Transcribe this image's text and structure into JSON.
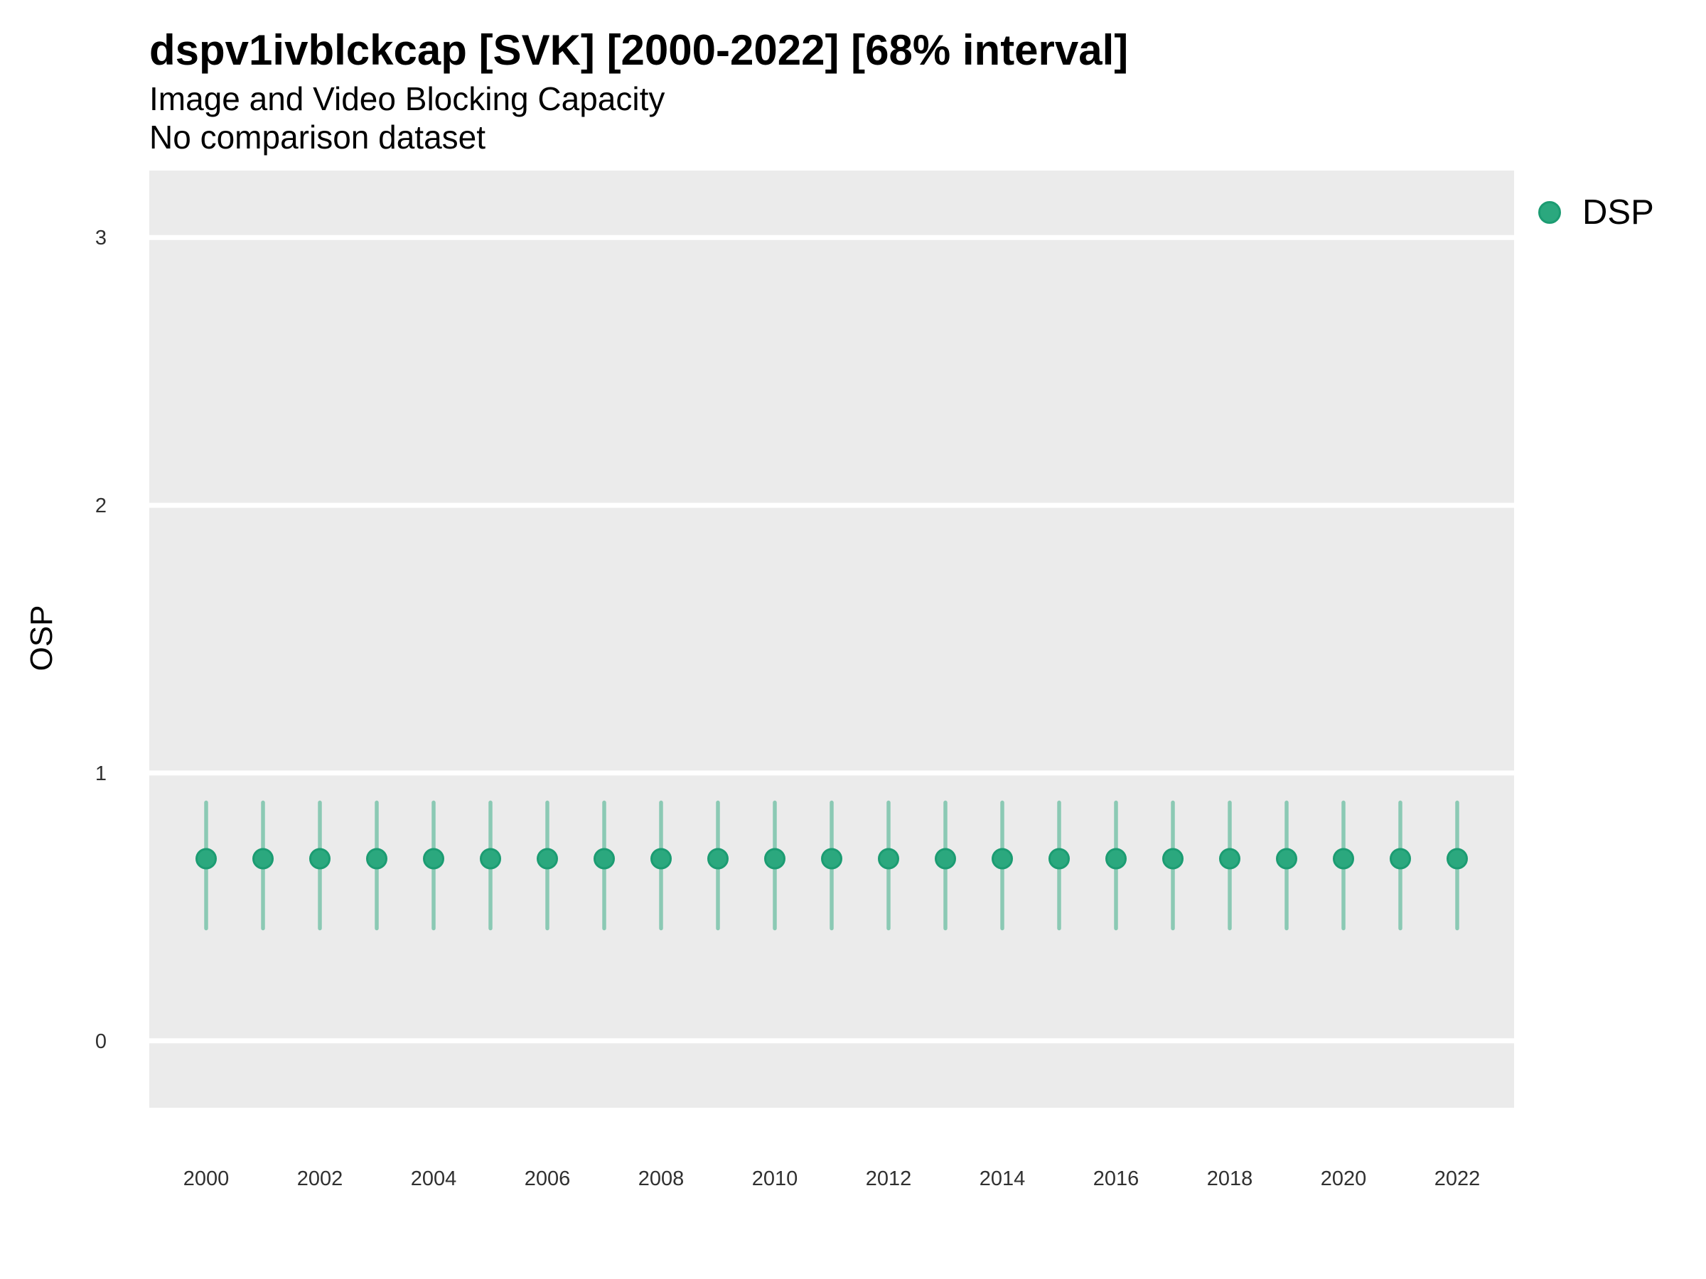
{
  "header": {
    "title": "dspv1ivblckcap [SVK] [2000-2022] [68% interval]",
    "subtitle": "Image and Video Blocking Capacity",
    "caption": "No comparison dataset"
  },
  "colors": {
    "panel_background": "#EBEBEB",
    "gridline": "#FFFFFF",
    "point_fill": "#2BA87E",
    "point_edge": "#1C9C72",
    "interval_line": "rgba(43,168,126,0.5)",
    "tick_text": "#303030",
    "title_text": "#000000"
  },
  "chart_data": {
    "type": "scatter",
    "title": "dspv1ivblckcap [SVK] [2000-2022] [68% interval]",
    "subtitle": "Image and Video Blocking Capacity",
    "caption": "No comparison dataset",
    "xlabel": "",
    "ylabel": "OSP",
    "interval_label": "68% interval",
    "grid": "horizontal-major-white-on-grey",
    "legend_position": "right-top",
    "xlim": [
      1999,
      2023
    ],
    "ylim": [
      -0.25,
      3.25
    ],
    "x_ticks": [
      2000,
      2002,
      2004,
      2006,
      2008,
      2010,
      2012,
      2014,
      2016,
      2018,
      2020,
      2022
    ],
    "y_ticks": [
      0,
      1,
      2,
      3
    ],
    "x": [
      2000,
      2001,
      2002,
      2003,
      2004,
      2005,
      2006,
      2007,
      2008,
      2009,
      2010,
      2011,
      2012,
      2013,
      2014,
      2015,
      2016,
      2017,
      2018,
      2019,
      2020,
      2021,
      2022
    ],
    "series": [
      {
        "name": "DSP",
        "color": "#2BA87E",
        "marker_edge_color": "#1C9C72",
        "interval_color": "rgba(43,168,126,0.5)",
        "values": [
          0.68,
          0.68,
          0.68,
          0.68,
          0.68,
          0.68,
          0.68,
          0.68,
          0.68,
          0.68,
          0.68,
          0.68,
          0.68,
          0.68,
          0.68,
          0.68,
          0.68,
          0.68,
          0.68,
          0.68,
          0.68,
          0.68,
          0.68
        ],
        "lower": [
          0.42,
          0.42,
          0.42,
          0.42,
          0.42,
          0.42,
          0.42,
          0.42,
          0.42,
          0.42,
          0.42,
          0.42,
          0.42,
          0.42,
          0.42,
          0.42,
          0.42,
          0.42,
          0.42,
          0.42,
          0.42,
          0.42,
          0.42
        ],
        "upper": [
          0.89,
          0.89,
          0.89,
          0.89,
          0.89,
          0.89,
          0.89,
          0.89,
          0.89,
          0.89,
          0.89,
          0.89,
          0.89,
          0.89,
          0.89,
          0.89,
          0.89,
          0.89,
          0.89,
          0.89,
          0.89,
          0.89,
          0.89
        ]
      }
    ]
  },
  "legend": {
    "items": [
      {
        "label": "DSP",
        "marker": "circle",
        "color": "#2BA87E"
      }
    ]
  },
  "axes": {
    "y_label": "OSP"
  }
}
